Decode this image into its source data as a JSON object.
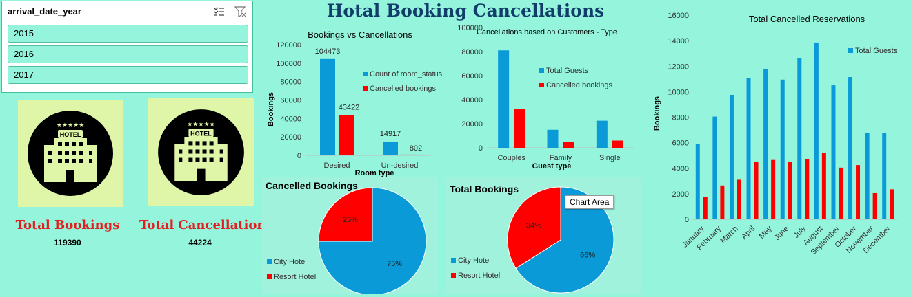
{
  "title": "Hotal Booking Cancellations",
  "slicer": {
    "title": "arrival_date_year",
    "items": [
      "2015",
      "2016",
      "2017"
    ],
    "icons": [
      "multi-select-icon",
      "clear-filter-icon"
    ]
  },
  "kpis": {
    "total_bookings_label": "Total Bookings",
    "total_bookings_value": "119390",
    "total_cancellations_label": "Total Cancellations",
    "total_cancellations_value": "44224",
    "card_icon": "hotel-building-icon",
    "hotel_sign": "HOTEL"
  },
  "tooltip": "Chart Area",
  "colors": {
    "blue": "#0a9ad8",
    "red": "#ff0000",
    "background": "#95f5dc"
  },
  "chart_data": [
    {
      "id": "room-type",
      "type": "bar",
      "title": "Bookings vs Cancellations",
      "xlabel": "Room type",
      "ylabel": "Bookings",
      "categories": [
        "Desired",
        "Un-desired"
      ],
      "series": [
        {
          "name": "Count of room_status",
          "color": "#0a9ad8",
          "values": [
            104473,
            14917
          ]
        },
        {
          "name": "Cancelled bookings",
          "color": "#ff0000",
          "values": [
            43422,
            802
          ]
        }
      ],
      "data_labels": [
        "104473",
        "14917",
        "43422",
        "802"
      ],
      "ylim": [
        0,
        120000
      ],
      "yticks": [
        0,
        20000,
        40000,
        60000,
        80000,
        100000,
        120000
      ],
      "ytick_labels": [
        "0",
        "20000",
        "40000",
        "60000",
        "80000",
        "100000",
        "120000"
      ],
      "legend": "right"
    },
    {
      "id": "guest-type",
      "type": "bar",
      "title": "Cancellations based on Customers - Type",
      "xlabel": "Guest type",
      "ylabel": "",
      "categories": [
        "Couples",
        "Family",
        "Single"
      ],
      "series": [
        {
          "name": "Total Guests",
          "color": "#0a9ad8",
          "values": [
            81000,
            15000,
            22500
          ]
        },
        {
          "name": "Cancelled bookings",
          "color": "#ff0000",
          "values": [
            32000,
            5000,
            6000
          ]
        }
      ],
      "ylim": [
        0,
        100000
      ],
      "yticks": [
        0,
        20000,
        40000,
        60000,
        80000,
        100000
      ],
      "ytick_labels": [
        "0",
        "20000",
        "40000",
        "60000",
        "80000",
        "100000"
      ],
      "legend": "right"
    },
    {
      "id": "monthly",
      "type": "bar",
      "title": "Total Cancelled Reservations",
      "xlabel": "",
      "ylabel": "Bookings",
      "categories": [
        "January",
        "February",
        "March",
        "April",
        "May",
        "June",
        "July",
        "August",
        "September",
        "October",
        "November",
        "December"
      ],
      "series": [
        {
          "name": "Total Guests",
          "color": "#0a9ad8",
          "values": [
            5900,
            8050,
            9750,
            11050,
            11800,
            10950,
            12650,
            13850,
            10500,
            11150,
            6750,
            6750
          ]
        },
        {
          "name": "",
          "color": "#ff0000",
          "values": [
            1750,
            2650,
            3100,
            4500,
            4650,
            4500,
            4700,
            5200,
            4050,
            4250,
            2050,
            2350
          ]
        }
      ],
      "ylim": [
        0,
        16000
      ],
      "yticks": [
        0,
        2000,
        4000,
        6000,
        8000,
        10000,
        12000,
        14000,
        16000
      ],
      "ytick_labels": [
        "0",
        "2000",
        "4000",
        "6000",
        "8000",
        "10000",
        "12000",
        "14000",
        "16000"
      ],
      "legend": "top-right"
    },
    {
      "id": "cancelled-pie",
      "type": "pie",
      "title": "Cancelled Bookings",
      "labels": [
        "City Hotel",
        "Resort Hotel"
      ],
      "values": [
        75,
        25
      ],
      "value_labels": [
        "75%",
        "25%"
      ],
      "colors": [
        "#0a9ad8",
        "#ff0000"
      ],
      "legend": "bottom-left"
    },
    {
      "id": "total-pie",
      "type": "pie",
      "title": "Total Bookings",
      "labels": [
        "City Hotel",
        "Resort Hotel"
      ],
      "values": [
        66,
        34
      ],
      "value_labels": [
        "66%",
        "34%"
      ],
      "colors": [
        "#0a9ad8",
        "#ff0000"
      ],
      "legend": "bottom-left"
    }
  ]
}
